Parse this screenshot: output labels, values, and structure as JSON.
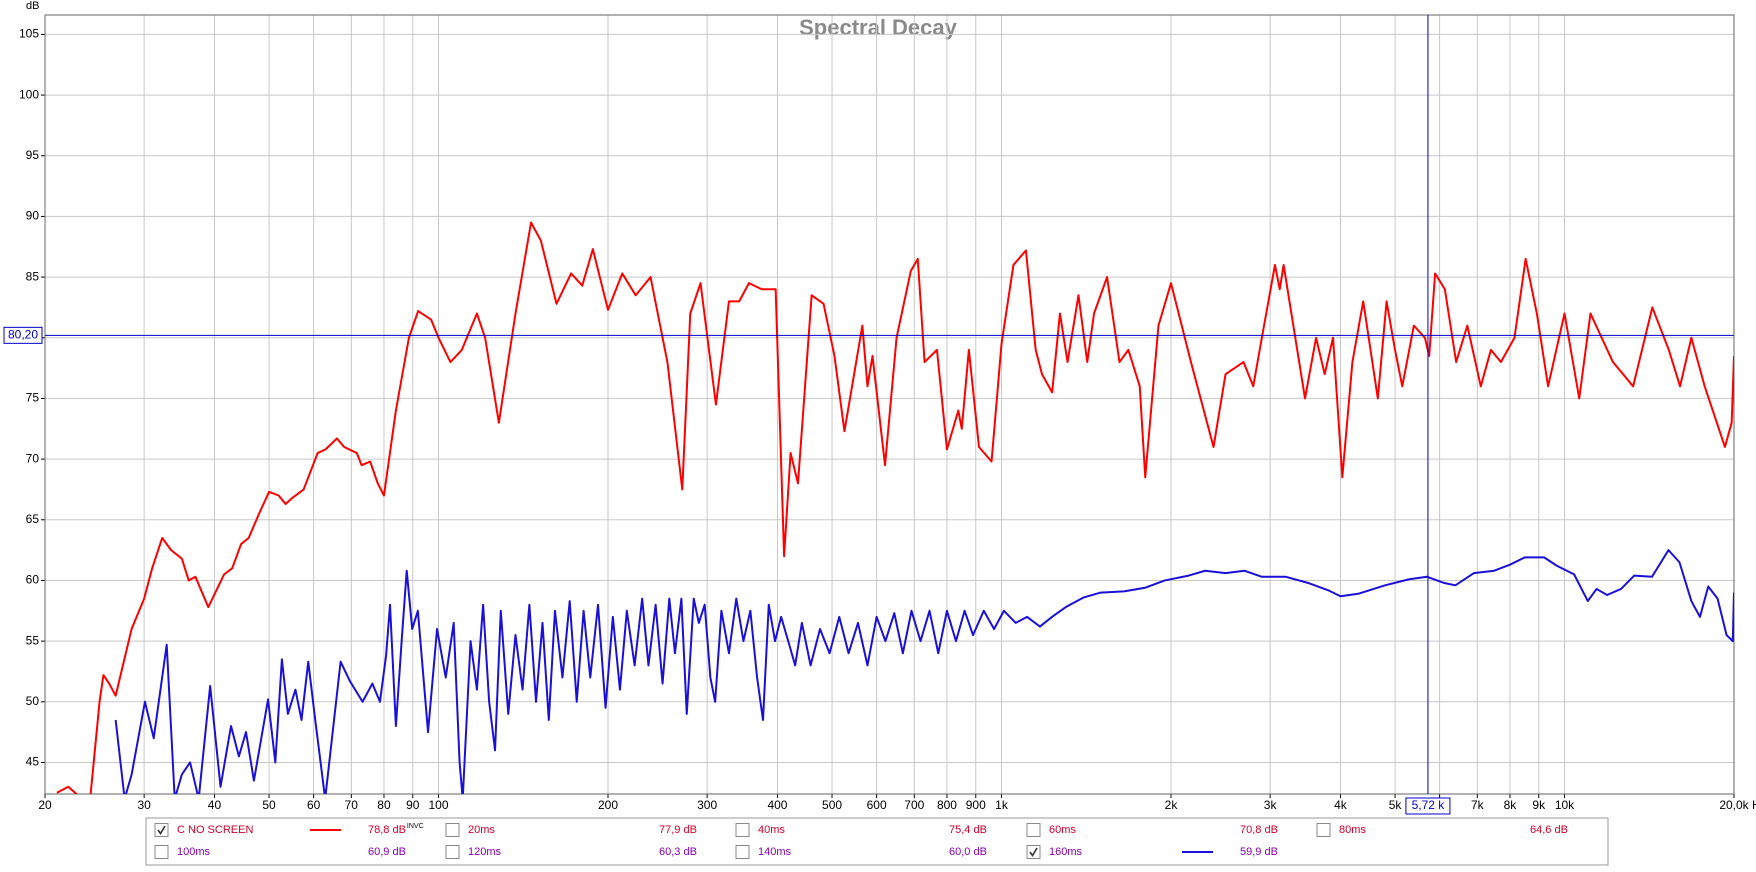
{
  "chart_data": {
    "type": "line",
    "title": "Spectral Decay",
    "y_unit": "dB",
    "x_unit": "Hz",
    "xscale": "log",
    "grid": true,
    "xlim": [
      20,
      20000
    ],
    "ylim": [
      42.4,
      106.6
    ],
    "yticks": [
      45,
      50,
      55,
      60,
      65,
      70,
      75,
      80,
      85,
      90,
      95,
      100,
      105
    ],
    "xticks": [
      20,
      30,
      40,
      50,
      60,
      70,
      80,
      90,
      100,
      200,
      300,
      400,
      500,
      600,
      700,
      800,
      900,
      {
        "value": 1000,
        "label": "1k"
      },
      {
        "value": 2000,
        "label": "2k"
      },
      {
        "value": 3000,
        "label": "3k"
      },
      {
        "value": 4000,
        "label": "4k"
      },
      {
        "value": 5000,
        "label": "5k"
      },
      {
        "value": 6000,
        "label": "6k"
      },
      {
        "value": 7000,
        "label": "7k"
      },
      {
        "value": 8000,
        "label": "8k"
      },
      {
        "value": 9000,
        "label": "9k"
      },
      {
        "value": 10000,
        "label": "10k"
      },
      {
        "value": 20000,
        "label": "20,0k"
      }
    ],
    "cursor": {
      "x": {
        "value": 5720,
        "label": "5,72 k"
      },
      "y": {
        "value": 80.2,
        "label": "80,20"
      },
      "color": "#0000cc"
    },
    "series": [
      {
        "name": "C NO SCREEN",
        "checked": true,
        "color": "#ff0000",
        "reading": "78,8 dB",
        "reading_note": "INVC",
        "x": [
          21,
          22,
          23,
          24,
          25,
          25.4,
          26,
          26.7,
          28.5,
          30,
          31,
          32.3,
          33.5,
          35,
          36,
          37,
          39,
          41.6,
          43,
          44.6,
          46,
          48,
          50,
          52,
          53.5,
          55,
          57.6,
          61,
          63,
          66,
          68,
          71.6,
          73,
          75.6,
          78,
          80,
          84,
          88.6,
          92,
          97,
          100,
          105,
          110,
          117,
          121,
          128,
          137,
          146,
          152,
          162,
          172,
          180,
          188,
          200,
          212,
          224,
          238,
          255,
          271,
          280,
          292,
          311,
          328,
          342,
          356,
          375,
          397,
          411,
          422,
          435,
          460,
          483,
          505,
          526,
          566,
          578,
          590,
          621,
          651,
          690,
          710,
          730,
          768,
          800,
          838,
          850,
          875,
          912,
          960,
          1000,
          1050,
          1105,
          1150,
          1180,
          1230,
          1270,
          1310,
          1370,
          1420,
          1460,
          1540,
          1620,
          1680,
          1760,
          1800,
          1900,
          2000,
          2170,
          2380,
          2500,
          2690,
          2800,
          2900,
          3060,
          3120,
          3170,
          3460,
          3620,
          3750,
          3880,
          4030,
          4200,
          4390,
          4660,
          4830,
          5000,
          5150,
          5400,
          5650,
          5750,
          5890,
          6130,
          6420,
          6720,
          7100,
          7400,
          7710,
          8150,
          8530,
          8930,
          9350,
          10000,
          10620,
          11120,
          12190,
          13240,
          14320,
          15320,
          16040,
          16800,
          17740,
          19270,
          19810,
          20000
        ],
        "values": [
          42.5,
          43,
          42.2,
          41.5,
          50,
          52.2,
          51.5,
          50.5,
          56,
          58.5,
          61,
          63.5,
          62.5,
          61.8,
          60,
          60.3,
          57.8,
          60.5,
          61,
          63,
          63.5,
          65.5,
          67.3,
          67,
          66.3,
          66.8,
          67.5,
          70.5,
          70.8,
          71.7,
          71,
          70.5,
          69.5,
          69.8,
          68,
          67,
          74,
          80,
          82.2,
          81.5,
          80,
          78,
          79,
          82,
          80,
          73,
          82,
          89.5,
          88,
          82.8,
          85.3,
          84.3,
          87.3,
          82.3,
          85.3,
          83.5,
          85,
          78,
          67.5,
          82,
          84.5,
          74.5,
          83,
          83,
          84.5,
          84,
          84,
          62,
          70.5,
          68,
          83.5,
          82.8,
          78.5,
          72.3,
          81,
          76,
          78.5,
          69.5,
          80,
          85.5,
          86.5,
          78,
          79,
          70.8,
          74,
          72.5,
          79,
          71,
          69.8,
          79.5,
          86,
          87.2,
          79,
          77,
          75.5,
          82,
          78,
          83.5,
          78,
          82,
          85,
          78,
          79,
          76,
          68.5,
          81,
          84.5,
          78,
          71,
          77,
          78,
          76,
          80,
          86,
          84,
          86,
          75,
          80,
          77,
          80,
          68.5,
          78,
          83,
          75,
          83,
          79,
          76,
          81,
          80,
          78.5,
          85.3,
          84,
          78,
          81,
          76,
          79,
          78,
          80,
          86.5,
          82,
          76,
          82,
          75,
          82,
          78,
          76,
          82.5,
          79,
          76,
          80,
          76,
          71,
          73,
          78.5
        ]
      },
      {
        "name": "20ms",
        "checked": false,
        "reading": "77,9 dB",
        "x": [],
        "values": []
      },
      {
        "name": "40ms",
        "checked": false,
        "reading": "75,4 dB",
        "x": [],
        "values": []
      },
      {
        "name": "60ms",
        "checked": false,
        "reading": "70,8 dB",
        "x": [],
        "values": []
      },
      {
        "name": "80ms",
        "checked": false,
        "reading": "64,6 dB",
        "x": [],
        "values": []
      },
      {
        "name": "100ms",
        "checked": false,
        "reading": "60,9 dB",
        "x": [],
        "values": []
      },
      {
        "name": "120ms",
        "checked": false,
        "reading": "60,3 dB",
        "x": [],
        "values": []
      },
      {
        "name": "140ms",
        "checked": false,
        "reading": "60,0 dB",
        "x": [],
        "values": []
      },
      {
        "name": "160ms",
        "checked": true,
        "color": "#1a10d8",
        "reading": "59,9 dB",
        "x": [
          26.7,
          27.7,
          28.5,
          30.1,
          31.2,
          32.9,
          34,
          35,
          36.2,
          37.5,
          39.3,
          41,
          42.8,
          44.2,
          45.5,
          47,
          49.8,
          51.3,
          52.7,
          54,
          55.7,
          57.1,
          58.7,
          60.4,
          62.9,
          67,
          69.6,
          73.3,
          76.3,
          78.7,
          80.7,
          82,
          84,
          86,
          87.8,
          89.8,
          91.9,
          95.8,
          99.4,
          103,
          106.4,
          109,
          110.4,
          114,
          117,
          120,
          123,
          126,
          129,
          133,
          137,
          141,
          145,
          149,
          153,
          157,
          161,
          166,
          171,
          176,
          181,
          186,
          192,
          198,
          204,
          210,
          216,
          223,
          230,
          236,
          243,
          250,
          257,
          263,
          270,
          276,
          284,
          290,
          297,
          304,
          310,
          318,
          328,
          338,
          348,
          358,
          368,
          377,
          386,
          396,
          406,
          418,
          430,
          442,
          458,
          476,
          495,
          515,
          535,
          556,
          578,
          600,
          622,
          645,
          668,
          692,
          718,
          745,
          772,
          800,
          830,
          860,
          890,
          930,
          970,
          1010,
          1060,
          1110,
          1170,
          1230,
          1300,
          1400,
          1500,
          1650,
          1800,
          1950,
          2150,
          2300,
          2500,
          2700,
          2900,
          3200,
          3500,
          3800,
          4000,
          4300,
          4800,
          5300,
          5700,
          6100,
          6400,
          6900,
          7500,
          8000,
          8500,
          9200,
          9700,
          10400,
          11000,
          11400,
          11900,
          12600,
          13300,
          14300,
          15300,
          16000,
          16800,
          17400,
          18000,
          18700,
          19400,
          19900,
          20000
        ],
        "values": [
          48.5,
          42,
          44,
          50,
          47,
          54.7,
          42,
          44,
          45,
          42,
          51.3,
          43,
          48,
          45.5,
          47.5,
          43.5,
          50.2,
          45,
          53.5,
          49,
          51,
          48.5,
          53.3,
          48.5,
          42,
          53.3,
          51.7,
          50,
          51.5,
          50,
          53.8,
          58,
          48,
          55,
          60.8,
          56,
          57.5,
          47.5,
          56,
          52,
          56.5,
          45,
          42,
          55,
          51,
          58,
          50,
          46,
          57.5,
          49,
          55.5,
          51,
          58,
          50,
          56.5,
          48.5,
          57.5,
          52,
          58.3,
          50,
          57.5,
          52,
          58,
          49.5,
          57,
          51,
          57.5,
          53,
          58.5,
          53,
          58,
          51.5,
          58.5,
          54,
          58.5,
          49,
          58.5,
          56.5,
          58,
          52,
          50,
          57.5,
          54,
          58.5,
          55,
          57.5,
          52,
          48.5,
          58,
          55,
          57,
          55,
          53,
          56.5,
          53,
          56,
          54,
          57,
          54,
          56.5,
          53,
          57,
          55,
          57.3,
          54,
          57.5,
          55,
          57.5,
          54,
          57.5,
          55,
          57.5,
          55.5,
          57.5,
          56,
          57.5,
          56.5,
          57,
          56.2,
          57,
          57.8,
          58.6,
          59,
          59.1,
          59.4,
          60,
          60.4,
          60.8,
          60.6,
          60.8,
          60.3,
          60.3,
          59.8,
          59.2,
          58.7,
          58.9,
          59.6,
          60.1,
          60.3,
          59.8,
          59.6,
          60.6,
          60.8,
          61.3,
          61.9,
          61.9,
          61.2,
          60.5,
          58.3,
          59.3,
          58.8,
          59.3,
          60.4,
          60.3,
          62.5,
          61.5,
          58.3,
          57,
          59.5,
          58.5,
          55.5,
          55,
          59
        ]
      }
    ]
  }
}
